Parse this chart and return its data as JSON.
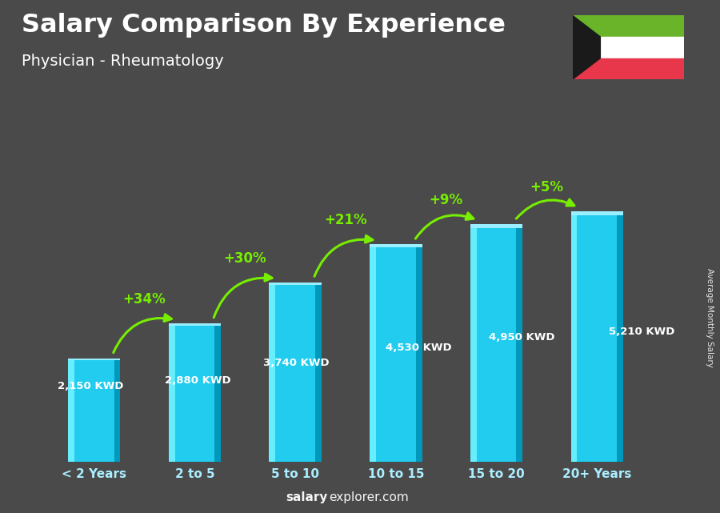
{
  "title": "Salary Comparison By Experience",
  "subtitle": "Physician - Rheumatology",
  "categories": [
    "< 2 Years",
    "2 to 5",
    "5 to 10",
    "10 to 15",
    "15 to 20",
    "20+ Years"
  ],
  "values": [
    2150,
    2880,
    3740,
    4530,
    4950,
    5210
  ],
  "value_labels": [
    "2,150 KWD",
    "2,880 KWD",
    "3,740 KWD",
    "4,530 KWD",
    "4,950 KWD",
    "5,210 KWD"
  ],
  "pct_changes": [
    "+34%",
    "+30%",
    "+21%",
    "+9%",
    "+5%"
  ],
  "bar_color_main": "#22ccee",
  "bar_color_light": "#66eeff",
  "bar_color_dark": "#0099bb",
  "bar_color_right": "#007799",
  "background_color": "#4a4a4a",
  "text_color_white": "#ffffff",
  "text_color_cyan": "#aaeeff",
  "ylabel": "Average Monthly Salary",
  "watermark_salary": "salary",
  "watermark_rest": "explorer.com",
  "arrow_color": "#77ee00",
  "value_label_color": "#ffffff",
  "pct_label_color": "#77ee00",
  "flag_green": "#6ab42a",
  "flag_white": "#ffffff",
  "flag_red": "#e8374a",
  "flag_black": "#1a1a1a",
  "y_max": 6200,
  "bar_width": 0.52,
  "arc_configs": [
    [
      0,
      1,
      "+34%"
    ],
    [
      1,
      2,
      "+30%"
    ],
    [
      2,
      3,
      "+21%"
    ],
    [
      3,
      4,
      "+9%"
    ],
    [
      4,
      5,
      "+5%"
    ]
  ]
}
